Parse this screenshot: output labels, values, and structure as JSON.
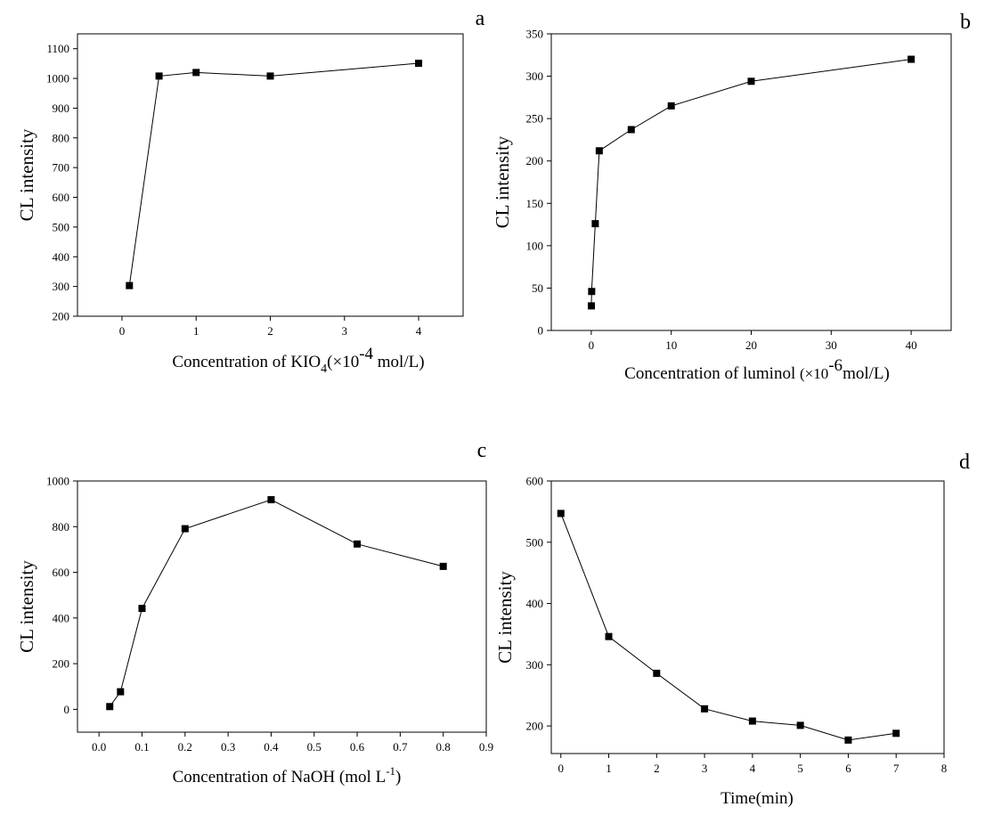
{
  "chart_data": [
    {
      "type": "line",
      "panel_label": "a",
      "ylabel": "CL intensity",
      "xlabel": {
        "text": "Concentration of KIO",
        "sub": "4",
        "text2": "(×10",
        "sup": "-4",
        "text3": " mol/L)"
      },
      "xlim": [
        -0.6,
        4.6
      ],
      "ylim": [
        200,
        1150
      ],
      "xticks": [
        0,
        1,
        2,
        3,
        4
      ],
      "yticks": [
        200,
        300,
        400,
        500,
        600,
        700,
        800,
        900,
        1000,
        1100
      ],
      "series": [
        {
          "x": [
            0.1,
            0.5,
            1,
            2,
            4
          ],
          "y": [
            303,
            1008,
            1020,
            1008,
            1051
          ]
        }
      ]
    },
    {
      "type": "line",
      "panel_label": "b",
      "ylabel": "CL intensity",
      "xlabel": {
        "text": "Concentration of luminol ",
        "small": "(×10",
        "sup": "-6",
        "text2": "mol/L)"
      },
      "xlim": [
        -5,
        45
      ],
      "ylim": [
        0,
        350
      ],
      "xticks": [
        0,
        10,
        20,
        30,
        40
      ],
      "yticks": [
        0,
        50,
        100,
        150,
        200,
        250,
        300,
        350
      ],
      "series": [
        {
          "x": [
            0.01,
            0.05,
            0.5,
            1,
            5,
            10,
            20,
            40
          ],
          "y": [
            29,
            46,
            126,
            212,
            237,
            265,
            294,
            320
          ]
        }
      ]
    },
    {
      "type": "line",
      "panel_label": "c",
      "ylabel": "CL intensity",
      "xlabel": {
        "text": "Concentration of NaOH (mol L",
        "sup": "-1",
        "text2": ")"
      },
      "xlim": [
        -0.05,
        0.9
      ],
      "ylim": [
        -100,
        1000
      ],
      "xticks": [
        "0.0",
        "0.1",
        "0.2",
        "0.3",
        "0.4",
        "0.5",
        "0.6",
        "0.7",
        "0.8",
        "0.9"
      ],
      "yticks": [
        0,
        200,
        400,
        600,
        800,
        1000
      ],
      "series": [
        {
          "x": [
            0.025,
            0.05,
            0.1,
            0.2,
            0.4,
            0.6,
            0.8
          ],
          "y": [
            12,
            77,
            442,
            791,
            918,
            724,
            626
          ]
        }
      ]
    },
    {
      "type": "line",
      "panel_label": "d",
      "ylabel": "CL intensity",
      "xlabel": {
        "text": "Time(min)"
      },
      "xlim": [
        -0.2,
        8
      ],
      "ylim": [
        155,
        600
      ],
      "xticks": [
        0,
        1,
        2,
        3,
        4,
        5,
        6,
        7,
        8
      ],
      "yticks": [
        200,
        300,
        400,
        500,
        600
      ],
      "series": [
        {
          "x": [
            0,
            1,
            2,
            3,
            4,
            5,
            6,
            7
          ],
          "y": [
            547,
            346,
            286,
            228,
            208,
            201,
            177,
            188
          ]
        }
      ]
    }
  ]
}
